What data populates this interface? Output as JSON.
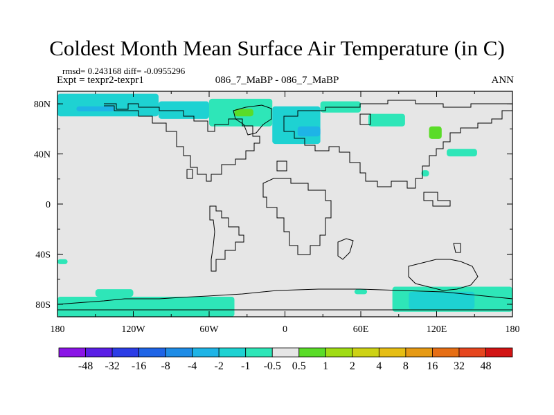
{
  "chart_data": {
    "type": "heatmap",
    "title": "Coldest Month Mean Surface Air Temperature (in C)",
    "stats_text": "rmsd= 0.243168 diff= -0.0955296",
    "experiment_text": "Expt = texpr2-texpr1",
    "center_text": "086_7_MaBP - 086_7_MaBP",
    "season_text": "ANN",
    "x_ticks": [
      "180",
      "120W",
      "60W",
      "0",
      "60E",
      "120E",
      "180"
    ],
    "y_ticks": [
      "80N",
      "40N",
      "0",
      "40S",
      "80S"
    ],
    "xlim": [
      -180,
      180
    ],
    "ylim": [
      -90,
      90
    ],
    "background_color": "#e6e6e6",
    "colorbar": {
      "labels": [
        "-48",
        "-32",
        "-16",
        "-8",
        "-4",
        "-2",
        "-1",
        "-0.5",
        "0.5",
        "1",
        "2",
        "4",
        "8",
        "16",
        "32",
        "48"
      ],
      "colors": [
        "#8a14e6",
        "#5a1ee6",
        "#2b3ce6",
        "#1e64e6",
        "#1e8ce6",
        "#1eb4e6",
        "#1ed2d2",
        "#2ee6b8",
        "#e6e6e6",
        "#5adc28",
        "#a0dc14",
        "#cdd214",
        "#e6be14",
        "#e69a14",
        "#e66e14",
        "#e6461e",
        "#d21414"
      ]
    },
    "anomaly_regions": [
      {
        "lon": [
          -180,
          -100
        ],
        "lat": [
          70,
          88
        ],
        "color": "#1ed2d2"
      },
      {
        "lon": [
          -165,
          -135
        ],
        "lat": [
          74,
          78
        ],
        "color": "#1eb4e6"
      },
      {
        "lon": [
          -100,
          -60
        ],
        "lat": [
          68,
          82
        ],
        "color": "#1ed2d2"
      },
      {
        "lon": [
          -60,
          -10
        ],
        "lat": [
          62,
          84
        ],
        "color": "#2ee6b8"
      },
      {
        "lon": [
          -40,
          -25
        ],
        "lat": [
          70,
          76
        ],
        "color": "#5adc28"
      },
      {
        "lon": [
          -10,
          28
        ],
        "lat": [
          48,
          78
        ],
        "color": "#1ed2d2"
      },
      {
        "lon": [
          10,
          28
        ],
        "lat": [
          54,
          62
        ],
        "color": "#1eb4e6"
      },
      {
        "lon": [
          28,
          60
        ],
        "lat": [
          73,
          82
        ],
        "color": "#2ee6b8"
      },
      {
        "lon": [
          66,
          95
        ],
        "lat": [
          62,
          72
        ],
        "color": "#2ee6b8"
      },
      {
        "lon": [
          114,
          124
        ],
        "lat": [
          52,
          62
        ],
        "color": "#5adc28"
      },
      {
        "lon": [
          108,
          114
        ],
        "lat": [
          22,
          27
        ],
        "color": "#2ee6b8"
      },
      {
        "lon": [
          128,
          152
        ],
        "lat": [
          38,
          44
        ],
        "color": "#2ee6b8"
      },
      {
        "lon": [
          -180,
          -172
        ],
        "lat": [
          -48,
          -44
        ],
        "color": "#2ee6b8"
      },
      {
        "lon": [
          -180,
          -40
        ],
        "lat": [
          -90,
          -74
        ],
        "color": "#2ee6b8"
      },
      {
        "lon": [
          -150,
          -120
        ],
        "lat": [
          -74,
          -68
        ],
        "color": "#2ee6b8"
      },
      {
        "lon": [
          55,
          65
        ],
        "lat": [
          -72,
          -68
        ],
        "color": "#2ee6b8"
      },
      {
        "lon": [
          85,
          180
        ],
        "lat": [
          -86,
          -66
        ],
        "color": "#2ee6b8"
      },
      {
        "lon": [
          98,
          150
        ],
        "lat": [
          -84,
          -70
        ],
        "color": "#1ed2d2"
      }
    ]
  }
}
